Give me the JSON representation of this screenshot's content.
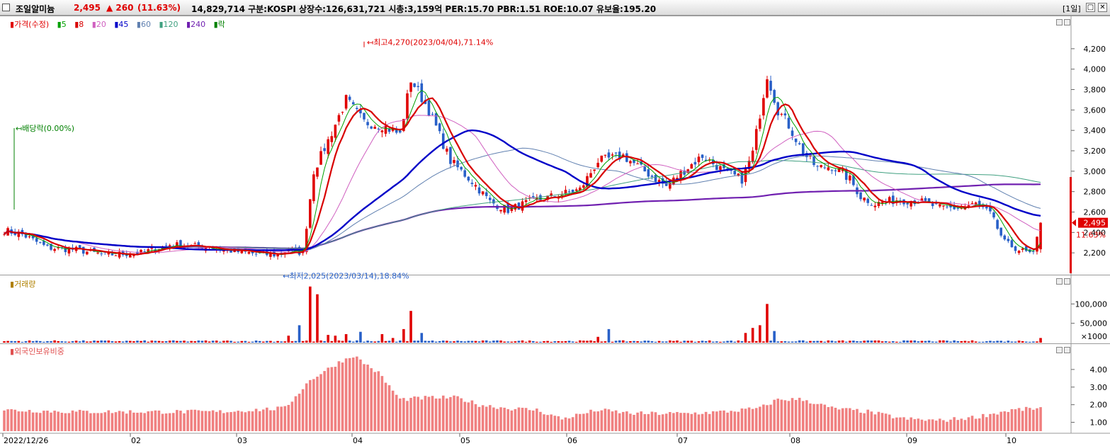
{
  "header": {
    "name": "조일알미늄",
    "price": "2,495",
    "change": "▲ 260",
    "change_pct": "(11.63%)",
    "info": "14,829,714  구분:KOSPI  상장수:126,631,721  시총:3,159억  PER:15.70  PBR:1.51  ROE:10.07  유보율:195.20",
    "period": "[1일]",
    "min_btn": "▢",
    "close_btn": "✕"
  },
  "legend_price": {
    "price": "가격(수정)",
    "ma5": "5",
    "ma8": "8",
    "ma20": "20",
    "ma45": "45",
    "ma60": "60",
    "ma120": "120",
    "ma240": "240",
    "ex": "락"
  },
  "legend_volume": "거래량",
  "legend_foreign": "외국인보유비중",
  "colors": {
    "up": "#e00000",
    "down": "#2860c8",
    "ma5": "#00a000",
    "ma8": "#d80000",
    "ma20": "#d060c0",
    "ma45": "#0000c8",
    "ma60": "#6080b0",
    "ma120": "#40a080",
    "ma240": "#7020b0",
    "foreign": "#f08080"
  },
  "chart_data": [
    {
      "type": "candlestick",
      "x_labels": [
        "2022/12/26",
        "02",
        "03",
        "04",
        "05",
        "06",
        "07",
        "08",
        "09",
        "10"
      ],
      "y_ticks": [
        "4,200",
        "4,000",
        "3,800",
        "3,600",
        "3,400",
        "3,200",
        "3,000",
        "2,800",
        "2,600",
        "2,400",
        "2,200"
      ],
      "ylim": [
        2000,
        4400
      ],
      "annotations": {
        "high": "최고4,270(2023/04/04),71.14%",
        "low": "최저2,025(2023/03/14),18.84%",
        "dividend": "배당락(0.00%)"
      },
      "last_price": "2,495",
      "last_pct": "11.63%",
      "close_anchors": [
        [
          0,
          2420
        ],
        [
          5,
          2380
        ],
        [
          12,
          2250
        ],
        [
          20,
          2230
        ],
        [
          28,
          2180
        ],
        [
          38,
          2200
        ],
        [
          46,
          2280
        ],
        [
          55,
          2260
        ],
        [
          63,
          2220
        ],
        [
          70,
          2190
        ],
        [
          76,
          2180
        ],
        [
          79,
          2230
        ],
        [
          83,
          2200
        ],
        [
          86,
          3000
        ],
        [
          90,
          3300
        ],
        [
          95,
          3700
        ],
        [
          100,
          3480
        ],
        [
          105,
          3450
        ],
        [
          110,
          3360
        ],
        [
          113,
          3900
        ],
        [
          118,
          3600
        ],
        [
          124,
          3100
        ],
        [
          130,
          2900
        ],
        [
          135,
          2700
        ],
        [
          140,
          2620
        ],
        [
          146,
          2700
        ],
        [
          152,
          2750
        ],
        [
          160,
          2820
        ],
        [
          165,
          3100
        ],
        [
          172,
          3150
        ],
        [
          178,
          3000
        ],
        [
          184,
          2850
        ],
        [
          188,
          2980
        ],
        [
          194,
          3150
        ],
        [
          200,
          3000
        ],
        [
          205,
          2920
        ],
        [
          208,
          3180
        ],
        [
          212,
          3950
        ],
        [
          215,
          3600
        ],
        [
          218,
          3450
        ],
        [
          222,
          3180
        ],
        [
          226,
          3030
        ],
        [
          230,
          3050
        ],
        [
          235,
          2920
        ],
        [
          238,
          2750
        ],
        [
          242,
          2680
        ],
        [
          248,
          2720
        ],
        [
          254,
          2710
        ],
        [
          260,
          2640
        ],
        [
          266,
          2640
        ],
        [
          270,
          2680
        ],
        [
          274,
          2580
        ],
        [
          278,
          2300
        ],
        [
          282,
          2230
        ],
        [
          286,
          2180
        ],
        [
          288,
          2495
        ]
      ],
      "ma_lines": [
        "5",
        "8",
        "20",
        "45",
        "60",
        "120",
        "240"
      ]
    },
    {
      "type": "bar",
      "title": "거래량",
      "y_ticks": [
        "100,000",
        "50,000"
      ],
      "unit": "×1000",
      "spikes": [
        [
          79,
          18
        ],
        [
          82,
          45
        ],
        [
          85,
          145
        ],
        [
          87,
          125
        ],
        [
          90,
          20
        ],
        [
          92,
          18
        ],
        [
          95,
          22
        ],
        [
          99,
          28
        ],
        [
          105,
          22
        ],
        [
          108,
          12
        ],
        [
          111,
          35
        ],
        [
          113,
          82
        ],
        [
          116,
          25
        ],
        [
          165,
          15
        ],
        [
          168,
          35
        ],
        [
          206,
          25
        ],
        [
          208,
          38
        ],
        [
          210,
          45
        ],
        [
          212,
          100
        ],
        [
          214,
          30
        ],
        [
          288,
          12
        ]
      ]
    },
    {
      "type": "bar",
      "title": "외국인보유비중",
      "y_ticks": [
        "4.00",
        "3.00",
        "2.00",
        "1.00"
      ],
      "anchors": [
        [
          0,
          1.7
        ],
        [
          20,
          1.6
        ],
        [
          40,
          1.6
        ],
        [
          60,
          1.6
        ],
        [
          78,
          1.8
        ],
        [
          85,
          3.4
        ],
        [
          93,
          4.4
        ],
        [
          97,
          4.8
        ],
        [
          104,
          3.8
        ],
        [
          110,
          2.3
        ],
        [
          118,
          2.4
        ],
        [
          126,
          2.4
        ],
        [
          132,
          2.0
        ],
        [
          140,
          1.8
        ],
        [
          148,
          1.7
        ],
        [
          155,
          1.2
        ],
        [
          165,
          1.7
        ],
        [
          175,
          1.5
        ],
        [
          190,
          1.5
        ],
        [
          200,
          1.6
        ],
        [
          210,
          1.8
        ],
        [
          215,
          2.3
        ],
        [
          222,
          2.3
        ],
        [
          230,
          1.8
        ],
        [
          240,
          1.6
        ],
        [
          250,
          1.2
        ],
        [
          260,
          1.1
        ],
        [
          270,
          1.3
        ],
        [
          280,
          1.7
        ],
        [
          288,
          1.8
        ]
      ]
    }
  ]
}
